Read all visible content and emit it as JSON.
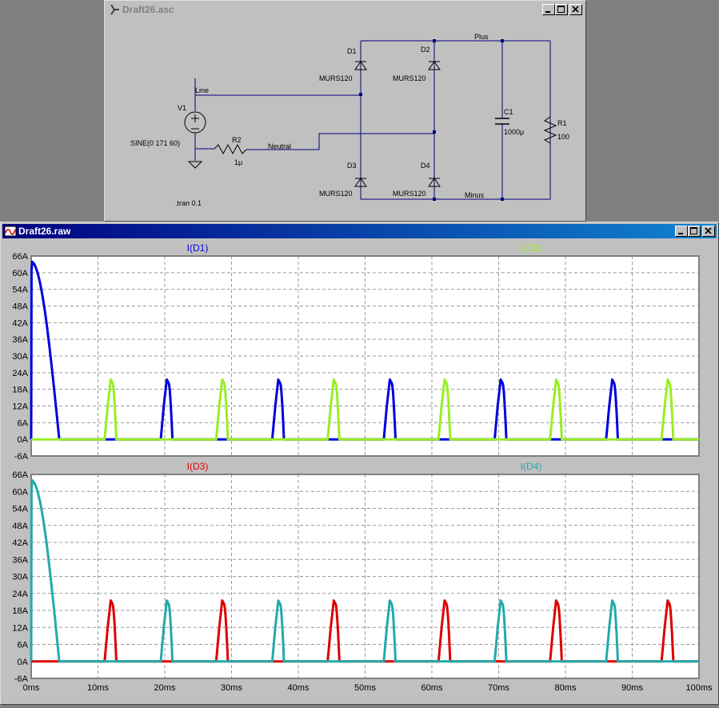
{
  "schematic_window": {
    "title": "Draft26.asc",
    "parts": {
      "v1_name": "V1",
      "v1_value": "SINE(0 171 60)",
      "r2_name": "R2",
      "r2_value": "1μ",
      "d1_name": "D1",
      "d1_model": "MURS120",
      "d2_name": "D2",
      "d2_model": "MURS120",
      "d3_name": "D3",
      "d3_model": "MURS120",
      "d4_name": "D4",
      "d4_model": "MURS120",
      "c1_name": "C1",
      "c1_value": "1000μ",
      "r1_name": "R1",
      "r1_value": "100"
    },
    "nets": {
      "line": "Line",
      "neutral": "Neutral",
      "plus": "Plus",
      "minus": "Minus"
    },
    "directive": ".tran 0.1"
  },
  "waveform_window": {
    "title": "Draft26.raw",
    "x_ticks": [
      "0ms",
      "10ms",
      "20ms",
      "30ms",
      "40ms",
      "50ms",
      "60ms",
      "70ms",
      "80ms",
      "90ms",
      "100ms"
    ],
    "y_ticks": [
      "66A",
      "60A",
      "54A",
      "48A",
      "42A",
      "36A",
      "30A",
      "24A",
      "18A",
      "12A",
      "6A",
      "0A",
      "-6A"
    ]
  },
  "chart_data": [
    {
      "type": "line",
      "pane": "top",
      "xlim": [
        0,
        100
      ],
      "x_unit": "ms",
      "ylim": [
        -6,
        66
      ],
      "y_unit": "A",
      "grid": true,
      "series": [
        {
          "name": "I(D1)",
          "color": "#0000dd",
          "inrush": {
            "start": 0,
            "end": 4.2,
            "peak": 64
          },
          "pulse_peaks": [
            20.3,
            37.0,
            53.7,
            70.3,
            87.0
          ],
          "pulse_height": 21.5
        },
        {
          "name": "I(D2)",
          "color": "#99ee22",
          "pulse_peaks": [
            11.9,
            28.6,
            45.3,
            61.9,
            78.6,
            95.3
          ],
          "pulse_height": 21.5
        }
      ]
    },
    {
      "type": "line",
      "pane": "bottom",
      "xlim": [
        0,
        100
      ],
      "x_unit": "ms",
      "ylim": [
        -6,
        66
      ],
      "y_unit": "A",
      "grid": true,
      "series": [
        {
          "name": "I(D3)",
          "color": "#dd0000",
          "pulse_peaks": [
            11.9,
            28.6,
            45.3,
            61.9,
            78.6,
            95.3
          ],
          "pulse_height": 21.5
        },
        {
          "name": "I(D4)",
          "color": "#22aaaa",
          "inrush": {
            "start": 0,
            "end": 4.2,
            "peak": 64
          },
          "pulse_peaks": [
            20.3,
            37.0,
            53.7,
            70.3,
            87.0
          ],
          "pulse_height": 21.5
        }
      ]
    }
  ]
}
